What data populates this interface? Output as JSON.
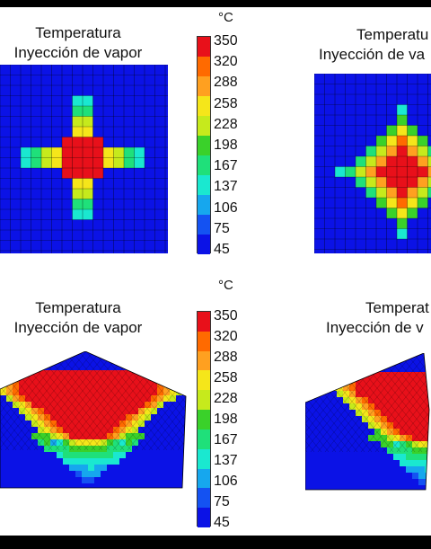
{
  "panels": [
    {
      "title1": "Temperatura",
      "title2": "Inyección de vapor"
    },
    {
      "title1": "Temperatu",
      "title2": "Inyección de va"
    },
    {
      "title1": "Temperatura",
      "title2": "Inyección de vapor"
    },
    {
      "title1": "Temperat",
      "title2": "Inyección de v"
    }
  ],
  "colorbar": {
    "unit": "°C",
    "ticks": [
      "350",
      "320",
      "288",
      "258",
      "228",
      "198",
      "167",
      "137",
      "106",
      "75",
      "45"
    ],
    "colors": [
      "#e8101a",
      "#ff6a00",
      "#ffa020",
      "#f5e61a",
      "#c6ea1c",
      "#3ad12a",
      "#1fe07a",
      "#1ae8d0",
      "#16a7ee",
      "#1452f2",
      "#0b12e6"
    ]
  }
}
